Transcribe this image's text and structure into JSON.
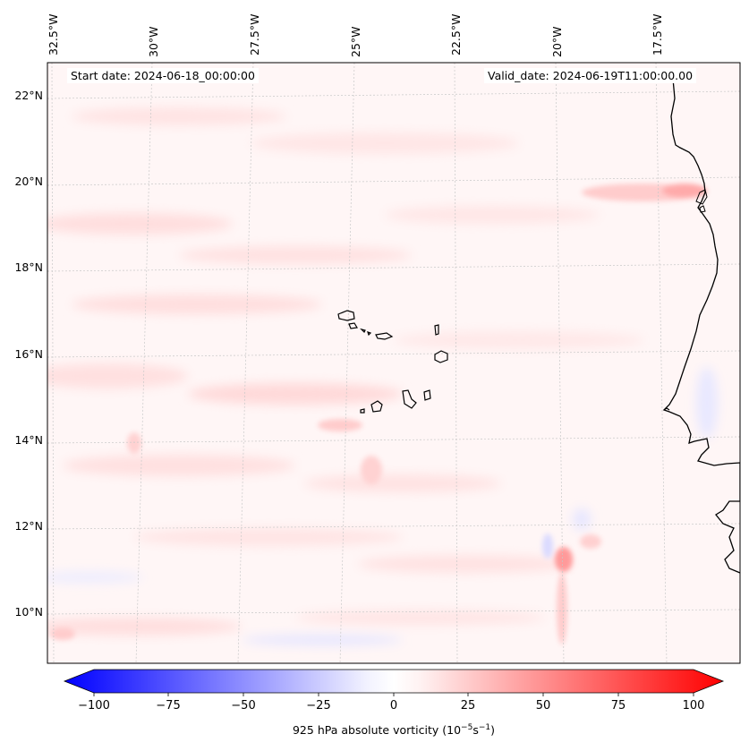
{
  "header": {
    "start_date": "Start date: 2024-06-18_00:00:00",
    "valid_date": "Valid_date: 2024-06-19T11:00:00.00"
  },
  "map": {
    "lon_labels": [
      "32.5°W",
      "30°W",
      "27.5°W",
      "25°W",
      "22.5°W",
      "20°W",
      "17.5°W"
    ],
    "lat_labels": [
      "22°N",
      "20°N",
      "18°N",
      "16°N",
      "14°N",
      "12°N",
      "10°N"
    ],
    "field": "925 hPa absolute vorticity",
    "colors": {
      "positive": "#ff0000",
      "negative": "#0000ff",
      "neutral": "#ffffff",
      "coastline": "#000000",
      "grid": "#bbbbbb"
    }
  },
  "colorbar": {
    "ticks": [
      "−100",
      "−75",
      "−50",
      "−25",
      "0",
      "25",
      "50",
      "75",
      "100"
    ],
    "label_prefix": "925 hPa absolute vorticity (10",
    "label_exp1": "−5",
    "label_mid": "s",
    "label_exp2": "−1",
    "label_suffix": ")",
    "range": [
      -100,
      100
    ]
  }
}
